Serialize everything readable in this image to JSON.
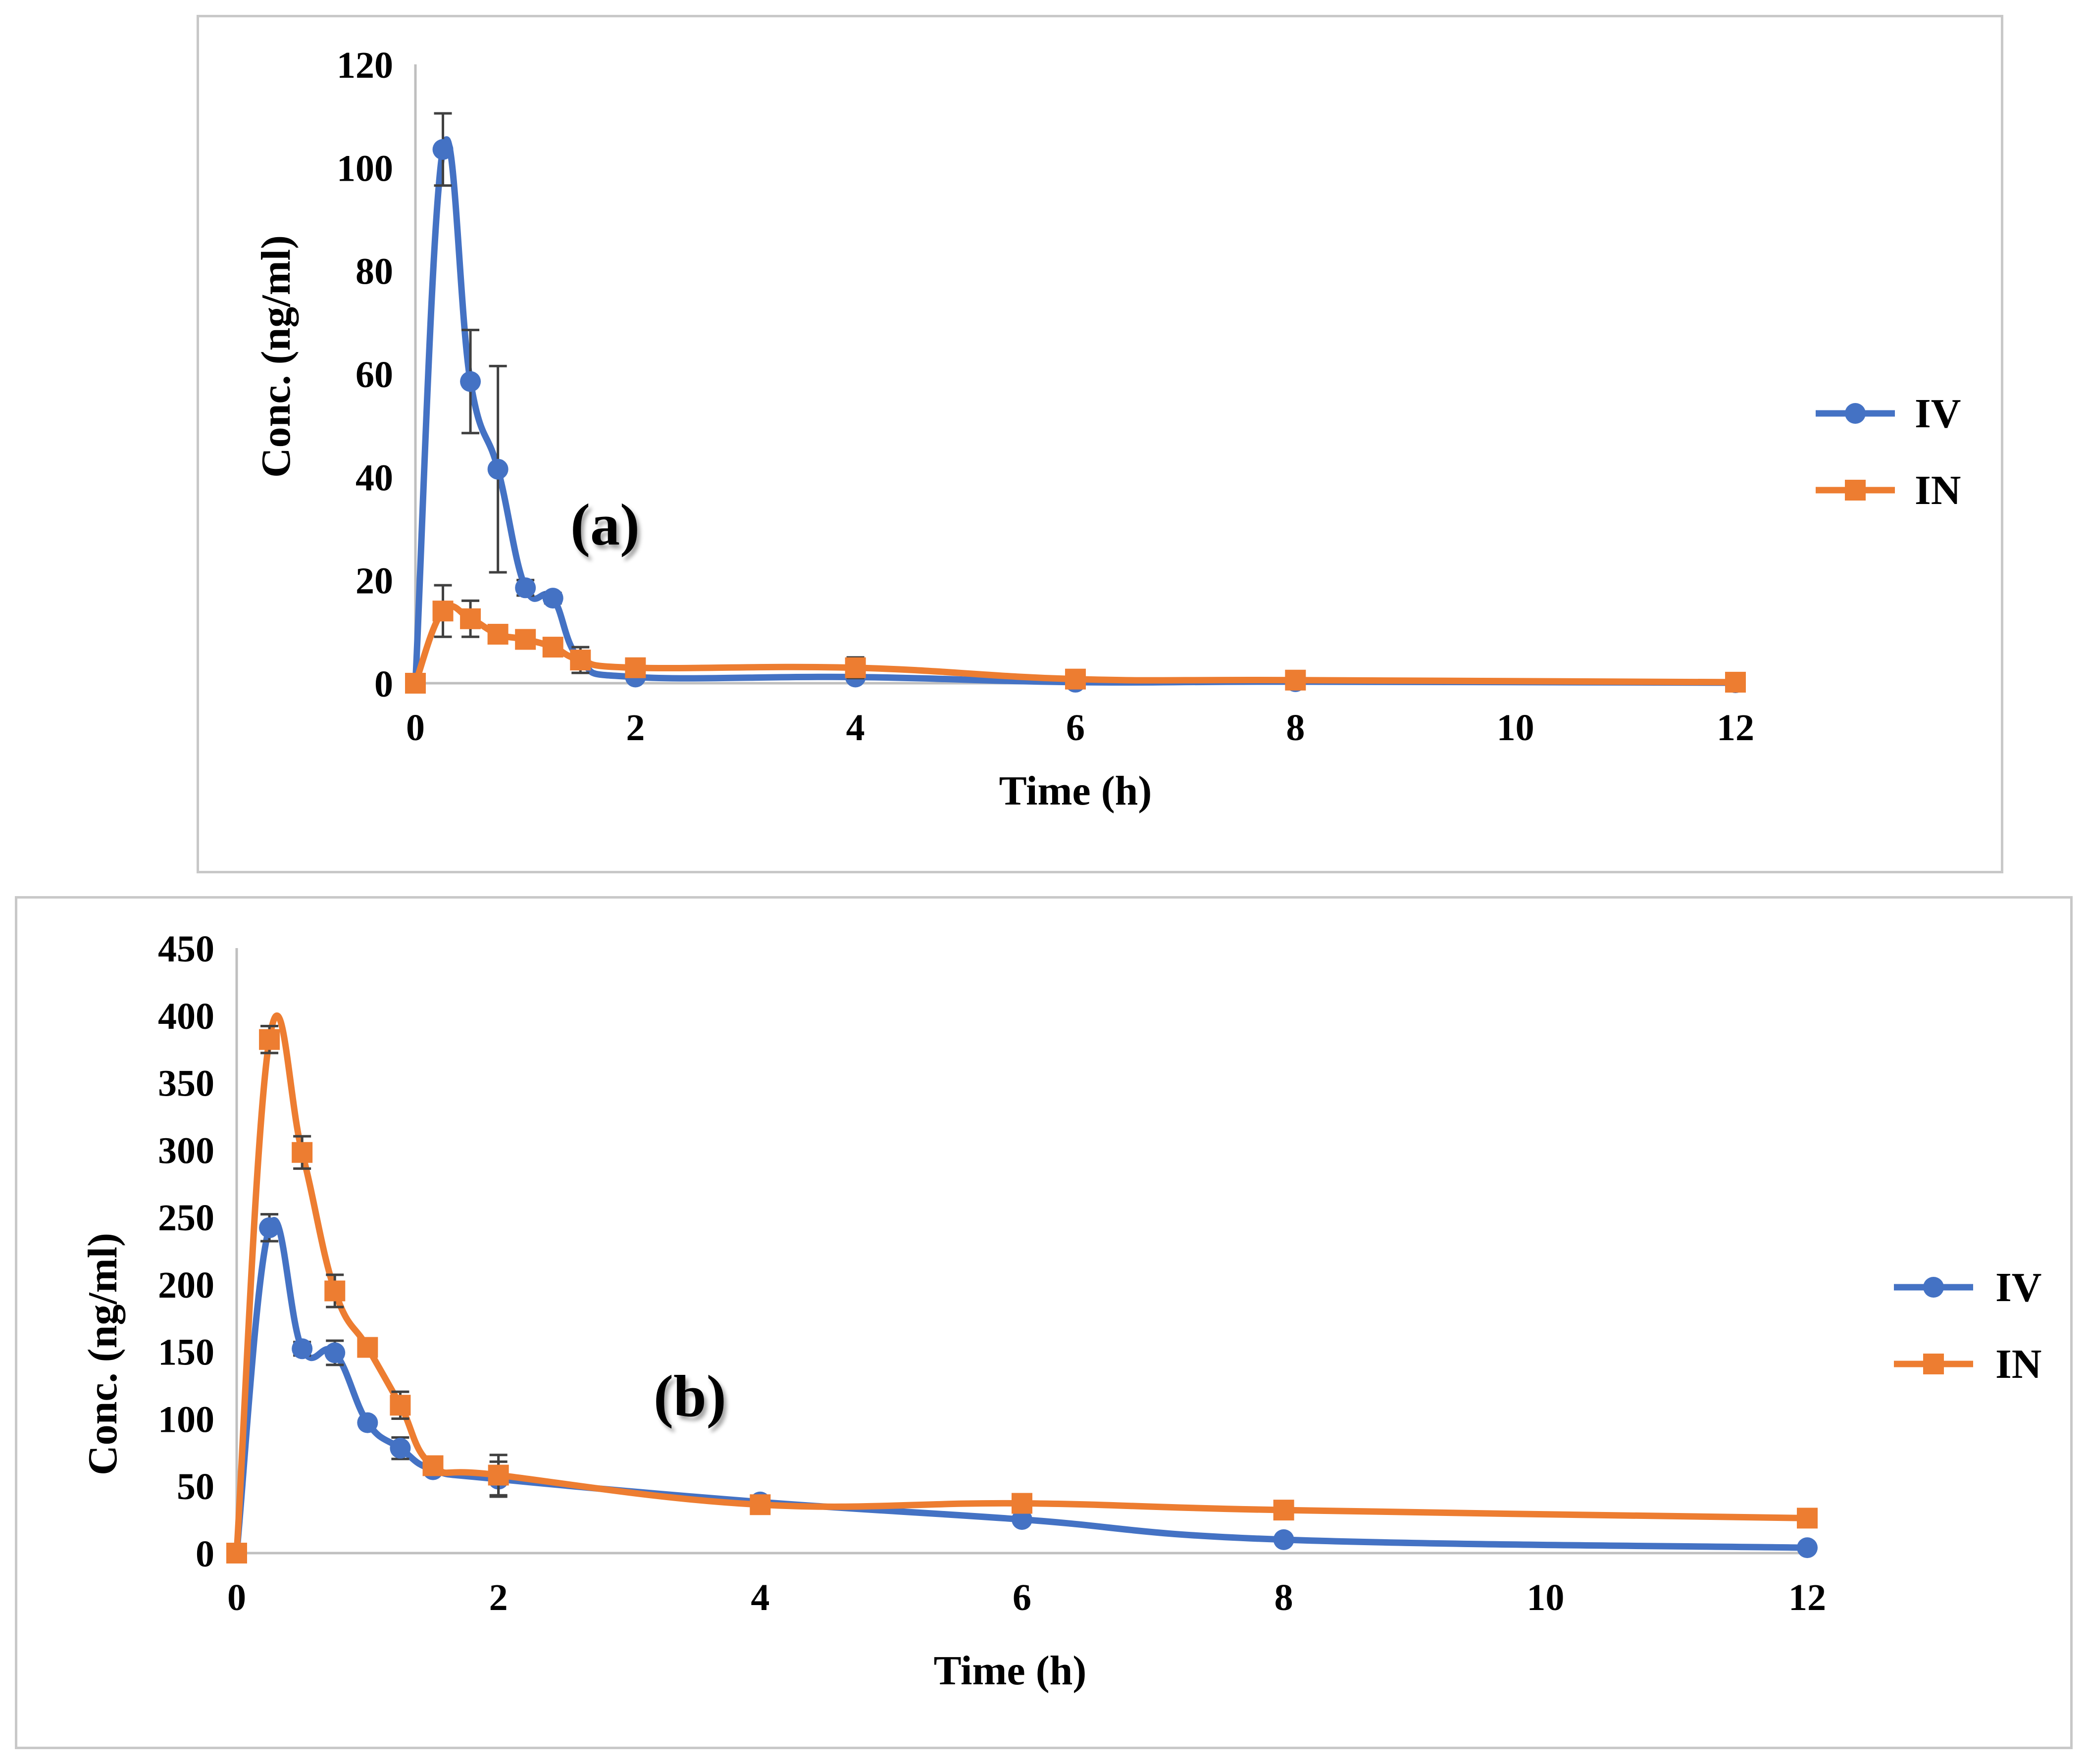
{
  "colors": {
    "iv": "#4472C4",
    "in": "#ED7D31",
    "axis": "#bfbfbf",
    "errorbar": "#404040"
  },
  "chart_data": [
    {
      "type": "line",
      "panel_label": "(a)",
      "xlabel": "Time (h)",
      "ylabel": "Conc. (ng/ml)",
      "xlim": [
        0,
        12
      ],
      "ylim": [
        0,
        120
      ],
      "xticks": [
        "0",
        "2",
        "4",
        "6",
        "8",
        "10",
        "12"
      ],
      "yticks": [
        "0",
        "20",
        "40",
        "60",
        "80",
        "100",
        "120"
      ],
      "legend_position": "right",
      "series": [
        {
          "name": "IV",
          "marker": "circle",
          "x": [
            0,
            0.25,
            0.5,
            0.75,
            1,
            1.25,
            1.5,
            2,
            4,
            6,
            8,
            12
          ],
          "y": [
            0,
            103.5,
            58.5,
            41.5,
            18.5,
            16.5,
            4.5,
            1.2,
            1.2,
            0.2,
            0.3,
            0.1
          ],
          "err": [
            0,
            7,
            10,
            20,
            1.5,
            1,
            1.5,
            0.3,
            0.5,
            0,
            0,
            0
          ]
        },
        {
          "name": "IN",
          "marker": "square",
          "x": [
            0,
            0.25,
            0.5,
            0.75,
            1,
            1.25,
            1.5,
            2,
            4,
            6,
            8,
            12
          ],
          "y": [
            0,
            14,
            12.5,
            9.5,
            8.5,
            7,
            4.5,
            3,
            3,
            0.8,
            0.6,
            0.2
          ],
          "err": [
            0,
            5,
            3.5,
            0.8,
            0.8,
            0.5,
            2.5,
            0.4,
            2,
            0.2,
            0.2,
            0.1
          ]
        }
      ]
    },
    {
      "type": "line",
      "panel_label": "(b)",
      "xlabel": "Time (h)",
      "ylabel": "Conc. (ng/ml)",
      "xlim": [
        0,
        12
      ],
      "ylim": [
        0,
        450
      ],
      "xticks": [
        "0",
        "2",
        "4",
        "6",
        "8",
        "10",
        "12"
      ],
      "yticks": [
        "0",
        "50",
        "100",
        "150",
        "200",
        "250",
        "300",
        "350",
        "400",
        "450"
      ],
      "legend_position": "right",
      "series": [
        {
          "name": "IV",
          "marker": "circle",
          "x": [
            0,
            0.25,
            0.5,
            0.75,
            1,
            1.25,
            1.5,
            2,
            4,
            6,
            8,
            12
          ],
          "y": [
            0,
            242,
            152,
            149,
            97,
            78,
            62,
            55,
            38,
            25,
            10,
            4
          ],
          "err": [
            0,
            10,
            5,
            9,
            3,
            8,
            3,
            13,
            3,
            3,
            1,
            1
          ]
        },
        {
          "name": "IN",
          "marker": "square",
          "x": [
            0,
            0.25,
            0.5,
            0.75,
            1,
            1.25,
            1.5,
            2,
            4,
            6,
            8,
            12
          ],
          "y": [
            0,
            382,
            298,
            195,
            153,
            110,
            65,
            58,
            36,
            37,
            32,
            26
          ],
          "err": [
            0,
            10,
            12,
            12,
            4,
            10,
            4,
            15,
            3,
            2,
            2,
            2
          ]
        }
      ]
    }
  ]
}
